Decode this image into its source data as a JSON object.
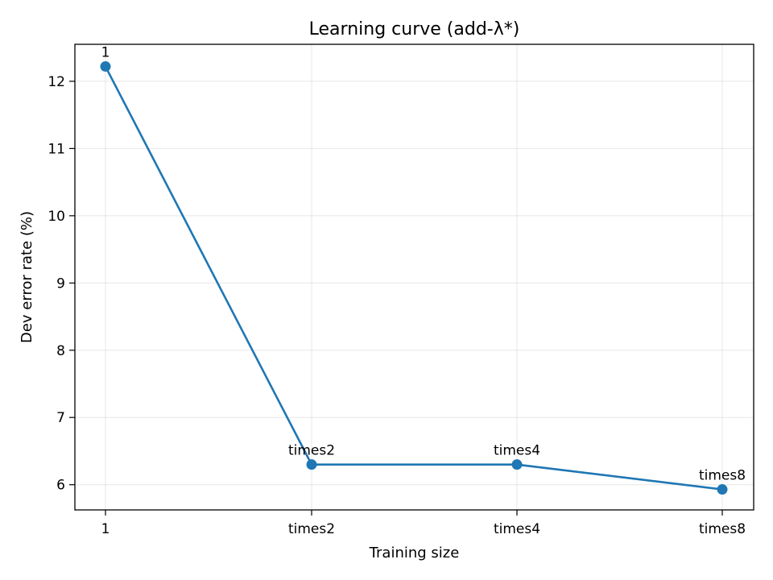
{
  "chart_data": {
    "type": "line",
    "title": "Learning curve (add-λ*)",
    "xlabel": "Training size",
    "ylabel": "Dev error rate (%)",
    "categories": [
      "1",
      "times2",
      "times4",
      "times8"
    ],
    "series": [
      {
        "values": [
          12.22,
          6.3,
          6.3,
          5.93
        ]
      }
    ],
    "point_labels": [
      "1",
      "times2",
      "times4",
      "times8"
    ],
    "ylim": [
      5.625,
      12.55
    ],
    "yticks": [
      6,
      7,
      8,
      9,
      10,
      11,
      12
    ],
    "grid": true,
    "line_color": "#1f77b4",
    "marker_color": "#1f77b4"
  }
}
